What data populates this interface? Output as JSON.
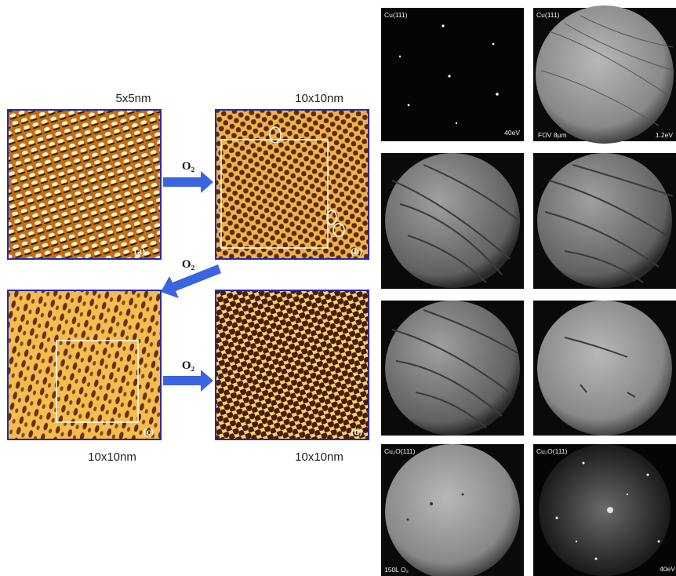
{
  "stm_panels": [
    {
      "tag": "(a)",
      "scale": "5x5nm"
    },
    {
      "tag": "(b)",
      "scale": "10x10nm"
    },
    {
      "tag": "(c)",
      "scale": "10x10nm"
    },
    {
      "tag": "(d)",
      "scale": "10x10nm"
    }
  ],
  "arrows": [
    "O₂",
    "O₂",
    "O₂"
  ],
  "leem": {
    "r1_left": {
      "top_left": "Cu(111)",
      "bottom_right": "40eV"
    },
    "r1_right": {
      "top_left": "Cu(111)",
      "bottom_left": "FOV 8µm",
      "bottom_right": "1.2eV"
    },
    "r4_left": {
      "top_left": "Cu₂O(111)",
      "bottom_left": "150L O₂"
    },
    "r4_right": {
      "top_left": "Cu₂O(111)",
      "bottom_right": "40eV"
    }
  }
}
